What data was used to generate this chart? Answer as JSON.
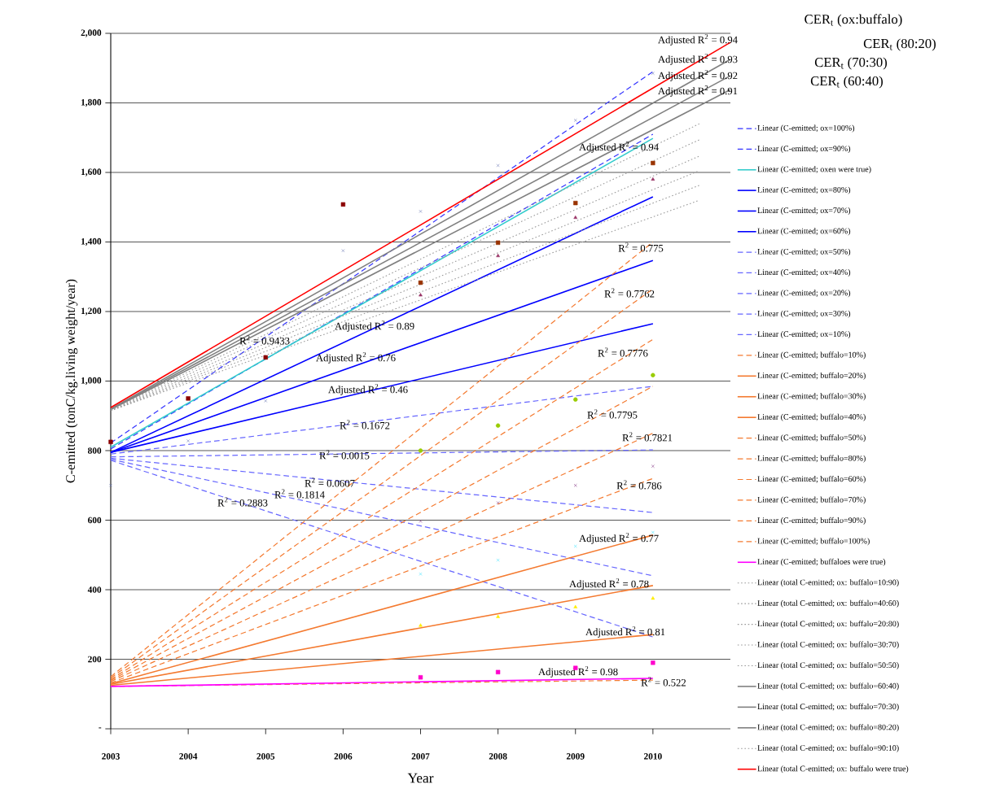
{
  "chart_data": {
    "type": "line",
    "xlabel": "Year",
    "ylabel": "C-emitted (tonC/kg.living weight/year)",
    "xlim": [
      2003,
      2011
    ],
    "xticks": [
      2003,
      2004,
      2005,
      2006,
      2007,
      2008,
      2009,
      2010
    ],
    "ylim": [
      0,
      2000
    ],
    "yticks": [
      {
        "value": 0,
        "label": "-"
      },
      {
        "value": 200,
        "label": "200"
      },
      {
        "value": 400,
        "label": "400"
      },
      {
        "value": 600,
        "label": "600"
      },
      {
        "value": 800,
        "label": "800"
      },
      {
        "value": 1000,
        "label": "1,000"
      },
      {
        "value": 1200,
        "label": "1,200"
      },
      {
        "value": 1400,
        "label": "1,400"
      },
      {
        "value": 1600,
        "label": "1,600"
      },
      {
        "value": 1800,
        "label": "1,800"
      },
      {
        "value": 2000,
        "label": "2,000"
      }
    ],
    "grid": "y",
    "legend": "right",
    "series": [
      {
        "name": "Linear (C-emitted; ox=100%)",
        "color": "#3333ff",
        "line_style": "dashed",
        "x": [
          2003,
          2010
        ],
        "values": [
          822,
          1890
        ]
      },
      {
        "name": "Linear (C-emitted; ox=90%)",
        "color": "#3333ff",
        "line_style": "dashed",
        "x": [
          2003,
          2010
        ],
        "values": [
          805,
          1710
        ]
      },
      {
        "name": "Linear (C-emitted; oxen were true)",
        "color": "#33cccc",
        "line_style": "solid",
        "x": [
          2003,
          2010
        ],
        "values": [
          810,
          1698
        ]
      },
      {
        "name": "Linear (C-emitted; ox=80%)",
        "color": "#0000ff",
        "line_style": "solid",
        "x": [
          2003,
          2010
        ],
        "values": [
          795,
          1530
        ]
      },
      {
        "name": "Linear (C-emitted; ox=70%)",
        "color": "#0000ff",
        "line_style": "solid",
        "x": [
          2003,
          2010
        ],
        "values": [
          795,
          1347
        ]
      },
      {
        "name": "Linear (C-emitted; ox=60%)",
        "color": "#0000ff",
        "line_style": "solid",
        "x": [
          2003,
          2010
        ],
        "values": [
          795,
          1165
        ]
      },
      {
        "name": "Linear (C-emitted; ox=50%)",
        "color": "#6666ff",
        "line_style": "dashed",
        "x": [
          2003,
          2010
        ],
        "values": [
          790,
          985
        ]
      },
      {
        "name": "Linear (C-emitted; ox=40%)",
        "color": "#6666ff",
        "line_style": "dashed",
        "x": [
          2003,
          2010
        ],
        "values": [
          782,
          802
        ]
      },
      {
        "name": "Linear (C-emitted; ox=20%)",
        "color": "#6666ff",
        "line_style": "dashed",
        "x": [
          2003,
          2010
        ],
        "values": [
          775,
          440
        ]
      },
      {
        "name": "Linear (C-emitted; ox=30%)",
        "color": "#6666ff",
        "line_style": "dashed",
        "x": [
          2003,
          2010
        ],
        "values": [
          778,
          622
        ]
      },
      {
        "name": "Linear (C-emitted; ox=10%)",
        "color": "#6666ff",
        "line_style": "dashed",
        "x": [
          2003,
          2010
        ],
        "values": [
          772,
          264
        ]
      },
      {
        "name": "Linear (C-emitted; buffalo=10%)",
        "color": "#f47a30",
        "line_style": "dashed",
        "x": [
          2003,
          2010
        ],
        "values": [
          122,
          140
        ]
      },
      {
        "name": "Linear (C-emitted; buffalo=20%)",
        "color": "#f47a30",
        "line_style": "solid",
        "x": [
          2003,
          2010
        ],
        "values": [
          125,
          271
        ]
      },
      {
        "name": "Linear (C-emitted; buffalo=30%)",
        "color": "#f47a30",
        "line_style": "solid",
        "x": [
          2003,
          2010
        ],
        "values": [
          128,
          412
        ]
      },
      {
        "name": "Linear (C-emitted; buffalo=40%)",
        "color": "#f47a30",
        "line_style": "solid",
        "x": [
          2003,
          2010
        ],
        "values": [
          130,
          557
        ]
      },
      {
        "name": "Linear (C-emitted; buffalo=50%)",
        "color": "#f47a30",
        "line_style": "dashed",
        "x": [
          2003,
          2010
        ],
        "values": [
          132,
          720
        ]
      },
      {
        "name": "Linear (C-emitted; buffalo=80%)",
        "color": "#f47a30",
        "line_style": "dashed",
        "x": [
          2003,
          2010
        ],
        "values": [
          142,
          1120
        ]
      },
      {
        "name": "Linear (C-emitted; buffalo=60%)",
        "color": "#f47a30",
        "line_style": "dashed",
        "x": [
          2003,
          2010
        ],
        "values": [
          136,
          850
        ]
      },
      {
        "name": "Linear (C-emitted; buffalo=70%)",
        "color": "#f47a30",
        "line_style": "dashed",
        "x": [
          2003,
          2010
        ],
        "values": [
          139,
          985
        ]
      },
      {
        "name": "Linear (C-emitted; buffalo=90%)",
        "color": "#f47a30",
        "line_style": "dashed",
        "x": [
          2003,
          2010
        ],
        "values": [
          146,
          1265
        ]
      },
      {
        "name": "Linear (C-emitted; buffalo=100%)",
        "color": "#f47a30",
        "line_style": "dashed",
        "x": [
          2003,
          2010
        ],
        "values": [
          150,
          1400
        ]
      },
      {
        "name": "Linear (C-emitted; buffaloes were true)",
        "color": "#ff00ff",
        "line_style": "solid",
        "x": [
          2003,
          2010
        ],
        "values": [
          122,
          145
        ]
      },
      {
        "name": "Linear (total C-emitted; ox: buffalo=10:90)",
        "color": "#999999",
        "line_style": "dotted",
        "x": [
          2003,
          2010.6
        ],
        "values": [
          915,
          1520
        ]
      },
      {
        "name": "Linear (total C-emitted; ox: buffalo=40:60)",
        "color": "#999999",
        "line_style": "dotted",
        "x": [
          2003,
          2010.6
        ],
        "values": [
          916,
          1647
        ]
      },
      {
        "name": "Linear (total C-emitted; ox: buffalo=20:80)",
        "color": "#999999",
        "line_style": "dotted",
        "x": [
          2003,
          2010.6
        ],
        "values": [
          915,
          1563
        ]
      },
      {
        "name": "Linear (total C-emitted; ox: buffalo=30:70)",
        "color": "#999999",
        "line_style": "dotted",
        "x": [
          2003,
          2010.6
        ],
        "values": [
          915,
          1605
        ]
      },
      {
        "name": "Linear (total C-emitted; ox: buffalo=50:50)",
        "color": "#999999",
        "line_style": "dotted",
        "x": [
          2003,
          2010.6
        ],
        "values": [
          917,
          1694
        ]
      },
      {
        "name": "Linear (total C-emitted; ox: buffalo=60:40)",
        "color": "#808080",
        "line_style": "solid",
        "x": [
          2003,
          2011
        ],
        "values": [
          918,
          1838
        ]
      },
      {
        "name": "Linear (total C-emitted; ox: buffalo=70:30)",
        "color": "#808080",
        "line_style": "solid",
        "x": [
          2003,
          2011
        ],
        "values": [
          919,
          1878
        ]
      },
      {
        "name": "Linear (total C-emitted; ox: buffalo=80:20)",
        "color": "#808080",
        "line_style": "solid",
        "x": [
          2003,
          2011
        ],
        "values": [
          920,
          1925
        ]
      },
      {
        "name": "Linear (total C-emitted; ox: buffalo=90:10)",
        "color": "#999999",
        "line_style": "dotted",
        "x": [
          2003,
          2010.6
        ],
        "values": [
          918,
          1740
        ]
      },
      {
        "name": "Linear (total C-emitted; ox: buffalo were true)",
        "color": "#ff0000",
        "line_style": "solid",
        "x": [
          2003,
          2011
        ],
        "values": [
          924,
          1974
        ]
      },
      {
        "type": "scatter",
        "color": "#8b0000",
        "marker": "square",
        "x": [
          2003,
          2004,
          2005,
          2006
        ],
        "values": [
          825,
          950,
          1068,
          1508
        ]
      },
      {
        "type": "scatter",
        "color": "#6070b0",
        "marker": "cross",
        "x": [
          2003,
          2004,
          2005,
          2006,
          2007,
          2008,
          2009,
          2010
        ],
        "values": [
          700,
          828,
          943,
          1375,
          1488,
          1620,
          1750,
          1885
        ]
      },
      {
        "type": "scatter",
        "color": "#ff00cc",
        "marker": "square",
        "x": [
          2007,
          2008,
          2009,
          2010
        ],
        "values": [
          148,
          163,
          175,
          190
        ]
      },
      {
        "type": "scatter",
        "color": "#ffee00",
        "marker": "triangle",
        "x": [
          2007,
          2008,
          2009,
          2010
        ],
        "values": [
          297,
          322,
          350,
          375
        ]
      },
      {
        "type": "scatter",
        "color": "#33e0ff",
        "marker": "cross",
        "x": [
          2007,
          2008,
          2009,
          2010
        ],
        "values": [
          445,
          485,
          525,
          565
        ]
      },
      {
        "type": "scatter",
        "color": "#7a2a7a",
        "marker": "cross",
        "x": [
          2007,
          2008,
          2009,
          2010
        ],
        "values": [
          597,
          650,
          700,
          755
        ]
      },
      {
        "type": "scatter",
        "color": "#99cc00",
        "marker": "circle",
        "x": [
          2007,
          2008,
          2009,
          2010
        ],
        "values": [
          800,
          872,
          947,
          1017
        ]
      },
      {
        "type": "scatter",
        "color": "#993366",
        "marker": "triangle",
        "x": [
          2007,
          2008,
          2009,
          2010
        ],
        "values": [
          1247,
          1360,
          1470,
          1580
        ]
      },
      {
        "type": "scatter",
        "color": "#993300",
        "marker": "square",
        "x": [
          2007,
          2008,
          2009,
          2010
        ],
        "values": [
          1283,
          1398,
          1512,
          1627
        ]
      }
    ],
    "annotations": [
      "CER$_{t}$ (ox:buffalo)",
      "CER$_{t}$ (80:20)",
      "CER$_{t}$ (70:30)",
      "CER$_{t}$ (60:40)",
      "Adjusted R$^{2}$ = 0.94",
      "Adjusted R$^{2}$ = 0.93",
      "Adjusted R$^{2}$ = 0.92",
      "Adjusted R$^{2}$ = 0.91",
      "Adjusted R$^{2}$ = 0.94",
      "R$^{2}$ = 0.9433",
      "Adjusted R$^{2}$ = 0.89",
      "Adjusted R$^{2}$ = 0.76",
      "Adjusted R$^{2}$ = 0.46",
      "R$^{2}$ = 0.1672",
      "R$^{2}$ = 0.0015",
      "R$^{2}$ = 0.0607",
      "R$^{2}$ = 0.1814",
      "R$^{2}$ = 0.2883",
      "R$^{2}$ = 0.775",
      "R$^{2}$ = 0.7762",
      "R$^{2}$ = 0.7776",
      "R$^{2}$ = 0.7795",
      "R$^{2}$ = 0.7821",
      "R$^{2}$ = 0.786",
      "Adjusted R$^{2}$ = 0.77",
      "Adjusted R$^{2}$ = 0.78",
      "Adjusted R$^{2}$ = 0.81",
      "Adjusted R$^{2}$ = 0.98",
      "R$^{2}$ = 0.522"
    ]
  }
}
